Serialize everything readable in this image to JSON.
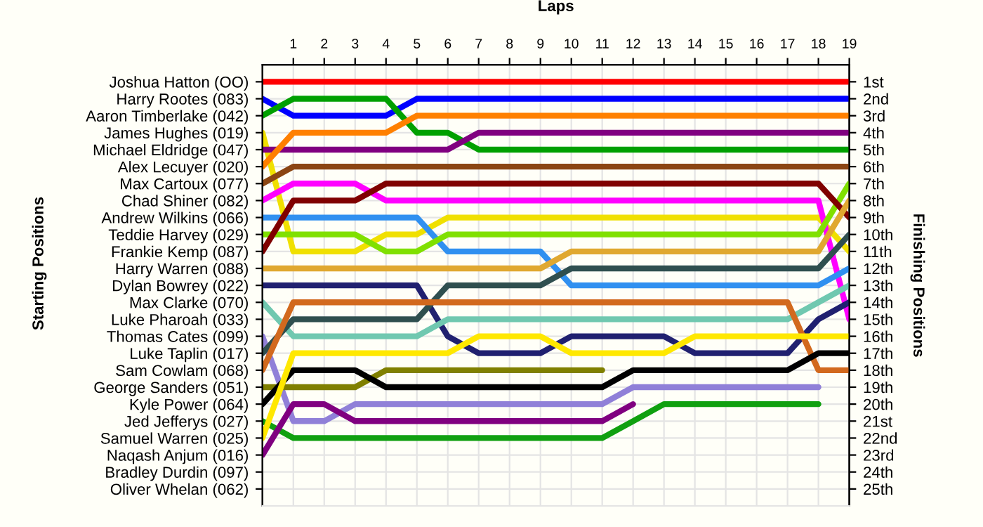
{
  "chart_data": {
    "type": "line",
    "xlabel": "Laps",
    "annotations": [
      "Starting Positions"
    ],
    "y2label": "Finishing Positions",
    "x": [
      0,
      1,
      2,
      3,
      4,
      5,
      6,
      7,
      8,
      9,
      10,
      11,
      12,
      13,
      14,
      15,
      16,
      17,
      18,
      19
    ],
    "xlim": [
      0,
      19
    ],
    "xticks": [
      1,
      2,
      3,
      4,
      5,
      6,
      7,
      8,
      9,
      10,
      11,
      12,
      13,
      14,
      15,
      16,
      17,
      18,
      19
    ],
    "y_categories": [
      "Joshua Hatton (OO)",
      "Harry Rootes (083)",
      "Aaron Timberlake (042)",
      "James Hughes (019)",
      "Michael Eldridge (047)",
      "Alex Lecuyer (020)",
      "Max Cartoux (077)",
      "Chad Shiner (082)",
      "Andrew Wilkins (066)",
      "Teddie Harvey (029)",
      "Frankie Kemp (087)",
      "Harry Warren (088)",
      "Dylan Bowrey (022)",
      "Max Clarke (070)",
      "Luke Pharoah (033)",
      "Thomas Cates (099)",
      "Luke Taplin (017)",
      "Sam Cowlam (068)",
      "George Sanders (051)",
      "Kyle Power (064)",
      "Jed Jefferys (027)",
      "Samuel Warren (025)",
      "Naqash Anjum (016)",
      "Bradley Durdin (097)",
      "Oliver Whelan (062)"
    ],
    "y2lim": [
      26,
      0
    ],
    "y2ticks": [
      {
        "value": 1,
        "label": "1st"
      },
      {
        "value": 2,
        "label": "2nd"
      },
      {
        "value": 3,
        "label": "3rd"
      },
      {
        "value": 4,
        "label": "4th"
      },
      {
        "value": 5,
        "label": "5th"
      },
      {
        "value": 6,
        "label": "6th"
      },
      {
        "value": 7,
        "label": "7th"
      },
      {
        "value": 8,
        "label": "8th"
      },
      {
        "value": 9,
        "label": "9th"
      },
      {
        "value": 10,
        "label": "10th"
      },
      {
        "value": 11,
        "label": "11th"
      },
      {
        "value": 12,
        "label": "12th"
      },
      {
        "value": 13,
        "label": "13th"
      },
      {
        "value": 14,
        "label": "14th"
      },
      {
        "value": 15,
        "label": "15th"
      },
      {
        "value": 16,
        "label": "16th"
      },
      {
        "value": 17,
        "label": "17th"
      },
      {
        "value": 18,
        "label": "18th"
      },
      {
        "value": 19,
        "label": "19th"
      },
      {
        "value": 20,
        "label": "20th"
      },
      {
        "value": 21,
        "label": "21st"
      },
      {
        "value": 22,
        "label": "22nd"
      },
      {
        "value": 23,
        "label": "23rd"
      },
      {
        "value": 24,
        "label": "24th"
      },
      {
        "value": 25,
        "label": "25th"
      }
    ],
    "grid": true,
    "marker": "none",
    "line_style": "solid",
    "series": [
      {
        "axis": "y2",
        "color": "#ff0000",
        "values": [
          1,
          1,
          1,
          1,
          1,
          1,
          1,
          1,
          1,
          1,
          1,
          1,
          1,
          1,
          1,
          1,
          1,
          1,
          1,
          1
        ]
      },
      {
        "axis": "y2",
        "color": "#0000ff",
        "values": [
          2,
          3,
          3,
          3,
          3,
          2,
          2,
          2,
          2,
          2,
          2,
          2,
          2,
          2,
          2,
          2,
          2,
          2,
          2,
          2
        ]
      },
      {
        "axis": "y2",
        "color": "#00a000",
        "values": [
          3,
          2,
          2,
          2,
          2,
          4,
          4,
          5,
          5,
          5,
          5,
          5,
          5,
          5,
          5,
          5,
          5,
          5,
          5,
          5
        ]
      },
      {
        "axis": "y2",
        "color": "#f0e000",
        "values": [
          4,
          11,
          11,
          11,
          10,
          10,
          9,
          9,
          9,
          9,
          9,
          9,
          9,
          9,
          9,
          9,
          9,
          9,
          9,
          11
        ]
      },
      {
        "axis": "y2",
        "color": "#800080",
        "values": [
          5,
          5,
          5,
          5,
          5,
          5,
          5,
          4,
          4,
          4,
          4,
          4,
          4,
          4,
          4,
          4,
          4,
          4,
          4,
          4
        ]
      },
      {
        "axis": "y2",
        "color": "#ff8000",
        "values": [
          6,
          4,
          4,
          4,
          4,
          3,
          3,
          3,
          3,
          3,
          3,
          3,
          3,
          3,
          3,
          3,
          3,
          3,
          3,
          3
        ]
      },
      {
        "axis": "y2",
        "color": "#8b4513",
        "values": [
          7,
          6,
          6,
          6,
          6,
          6,
          6,
          6,
          6,
          6,
          6,
          6,
          6,
          6,
          6,
          6,
          6,
          6,
          6,
          6
        ]
      },
      {
        "axis": "y2",
        "color": "#ff00ff",
        "values": [
          8,
          7,
          7,
          7,
          8,
          8,
          8,
          8,
          8,
          8,
          8,
          8,
          8,
          8,
          8,
          8,
          8,
          8,
          8,
          15
        ]
      },
      {
        "axis": "y2",
        "color": "#3090f0",
        "values": [
          9,
          9,
          9,
          9,
          9,
          9,
          11,
          11,
          11,
          11,
          13,
          13,
          13,
          13,
          13,
          13,
          13,
          13,
          13,
          12
        ]
      },
      {
        "axis": "y2",
        "color": "#80e000",
        "values": [
          10,
          10,
          10,
          10,
          11,
          11,
          10,
          10,
          10,
          10,
          10,
          10,
          10,
          10,
          10,
          10,
          10,
          10,
          10,
          7
        ]
      },
      {
        "axis": "y2",
        "color": "#800000",
        "values": [
          11,
          8,
          8,
          8,
          7,
          7,
          7,
          7,
          7,
          7,
          7,
          7,
          7,
          7,
          7,
          7,
          7,
          7,
          7,
          9
        ]
      },
      {
        "axis": "y2",
        "color": "#e0a830",
        "values": [
          12,
          12,
          12,
          12,
          12,
          12,
          12,
          12,
          12,
          12,
          11,
          11,
          11,
          11,
          11,
          11,
          11,
          11,
          11,
          8
        ]
      },
      {
        "axis": "y2",
        "color": "#202070",
        "values": [
          13,
          13,
          13,
          13,
          13,
          13,
          16,
          17,
          17,
          17,
          16,
          16,
          16,
          16,
          17,
          17,
          17,
          17,
          15,
          14
        ]
      },
      {
        "axis": "y2",
        "color": "#70c8b0",
        "values": [
          14,
          16,
          16,
          16,
          16,
          16,
          15,
          15,
          15,
          15,
          15,
          15,
          15,
          15,
          15,
          15,
          15,
          15,
          14,
          13
        ]
      },
      {
        "axis": "y2",
        "color": "#9080d8",
        "values": [
          16,
          21,
          21,
          20,
          20,
          20,
          20,
          20,
          20,
          20,
          20,
          20,
          19,
          19,
          19,
          19,
          19,
          19,
          19,
          null
        ]
      },
      {
        "axis": "y2",
        "color": "#2f4f4f",
        "values": [
          17,
          15,
          15,
          15,
          15,
          15,
          13,
          13,
          13,
          13,
          12,
          12,
          12,
          12,
          12,
          12,
          12,
          12,
          12,
          10
        ]
      },
      {
        "axis": "y2",
        "color": "#d2691e",
        "values": [
          18,
          14,
          14,
          14,
          14,
          14,
          14,
          14,
          14,
          14,
          14,
          14,
          14,
          14,
          14,
          14,
          14,
          14,
          18,
          18
        ]
      },
      {
        "axis": "y2",
        "color": "#808000",
        "values": [
          19,
          19,
          19,
          19,
          18,
          18,
          18,
          18,
          18,
          18,
          18,
          18,
          null,
          null,
          null,
          null,
          null,
          null,
          null,
          null
        ]
      },
      {
        "axis": "y2",
        "color": "#000000",
        "values": [
          20,
          18,
          18,
          18,
          19,
          19,
          19,
          19,
          19,
          19,
          19,
          19,
          18,
          18,
          18,
          18,
          18,
          18,
          17,
          17
        ]
      },
      {
        "axis": "y2",
        "color": "#10a010",
        "values": [
          21,
          22,
          22,
          22,
          22,
          22,
          22,
          22,
          22,
          22,
          22,
          22,
          21,
          20,
          20,
          20,
          20,
          20,
          20,
          null
        ]
      },
      {
        "axis": "y2",
        "color": "#ffe800",
        "values": [
          22,
          17,
          17,
          17,
          17,
          17,
          17,
          16,
          16,
          16,
          17,
          17,
          17,
          17,
          16,
          16,
          16,
          16,
          16,
          16
        ]
      },
      {
        "axis": "y2",
        "color": "#800080",
        "values": [
          23,
          20,
          20,
          21,
          21,
          21,
          21,
          21,
          21,
          21,
          21,
          21,
          20,
          null,
          null,
          null,
          null,
          null,
          null,
          null
        ]
      }
    ]
  }
}
